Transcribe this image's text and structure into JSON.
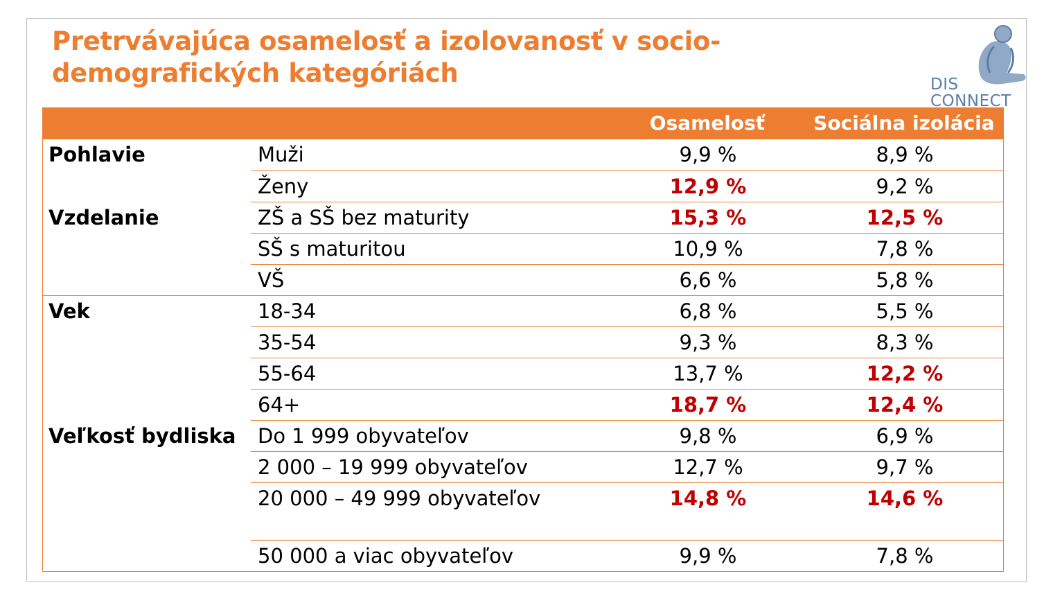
{
  "title": "Pretrvávajúca osamelosť a izolovanosť v socio-demografických kategóriách",
  "logo": {
    "line1": "DIS",
    "line2": "CONNECT"
  },
  "colors": {
    "accent": "#ed7d31",
    "highlight": "#c00000",
    "logo": "#5b7ea4"
  },
  "table": {
    "headers": [
      "",
      "",
      "Osamelosť",
      "Sociálna izolácia"
    ],
    "rows": [
      {
        "category": "Pohlavie",
        "subcategory": "Muži",
        "osamelost": "9,9 %",
        "izolacia": "8,9 %",
        "hl1": false,
        "hl2": false
      },
      {
        "category": "",
        "subcategory": "Ženy",
        "osamelost": "12,9 %",
        "izolacia": "9,2 %",
        "hl1": true,
        "hl2": false
      },
      {
        "category": "Vzdelanie",
        "subcategory": "ZŠ a SŠ bez maturity",
        "osamelost": "15,3 %",
        "izolacia": "12,5 %",
        "hl1": true,
        "hl2": true
      },
      {
        "category": "",
        "subcategory": "SŠ s maturitou",
        "osamelost": "10,9 %",
        "izolacia": "7,8 %",
        "hl1": false,
        "hl2": false
      },
      {
        "category": "",
        "subcategory": "VŠ",
        "osamelost": "6,6 %",
        "izolacia": "5,8 %",
        "hl1": false,
        "hl2": false
      },
      {
        "category": "Vek",
        "subcategory": "18-34",
        "osamelost": "6,8 %",
        "izolacia": "5,5 %",
        "hl1": false,
        "hl2": false
      },
      {
        "category": "",
        "subcategory": "35-54",
        "osamelost": "9,3 %",
        "izolacia": "8,3 %",
        "hl1": false,
        "hl2": false
      },
      {
        "category": "",
        "subcategory": "55-64",
        "osamelost": "13,7 %",
        "izolacia": "12,2 %",
        "hl1": false,
        "hl2": true
      },
      {
        "category": "",
        "subcategory": "64+",
        "osamelost": "18,7 %",
        "izolacia": "12,4 %",
        "hl1": true,
        "hl2": true
      },
      {
        "category": "Veľkosť bydliska",
        "subcategory": "Do 1 999 obyvateľov",
        "osamelost": "9,8 %",
        "izolacia": "6,9 %",
        "hl1": false,
        "hl2": false
      },
      {
        "category": "",
        "subcategory": "2 000 – 19 999 obyvateľov",
        "osamelost": "12,7 %",
        "izolacia": "9,7 %",
        "hl1": false,
        "hl2": false
      },
      {
        "category": "",
        "subcategory": "20 000 – 49 999 obyvateľov",
        "osamelost": "14,8 %",
        "izolacia": "14,6 %",
        "hl1": true,
        "hl2": true
      },
      {
        "category": "",
        "subcategory": "50 000 a viac obyvateľov",
        "osamelost": "9,9 %",
        "izolacia": "7,8 %",
        "hl1": false,
        "hl2": false
      }
    ]
  }
}
